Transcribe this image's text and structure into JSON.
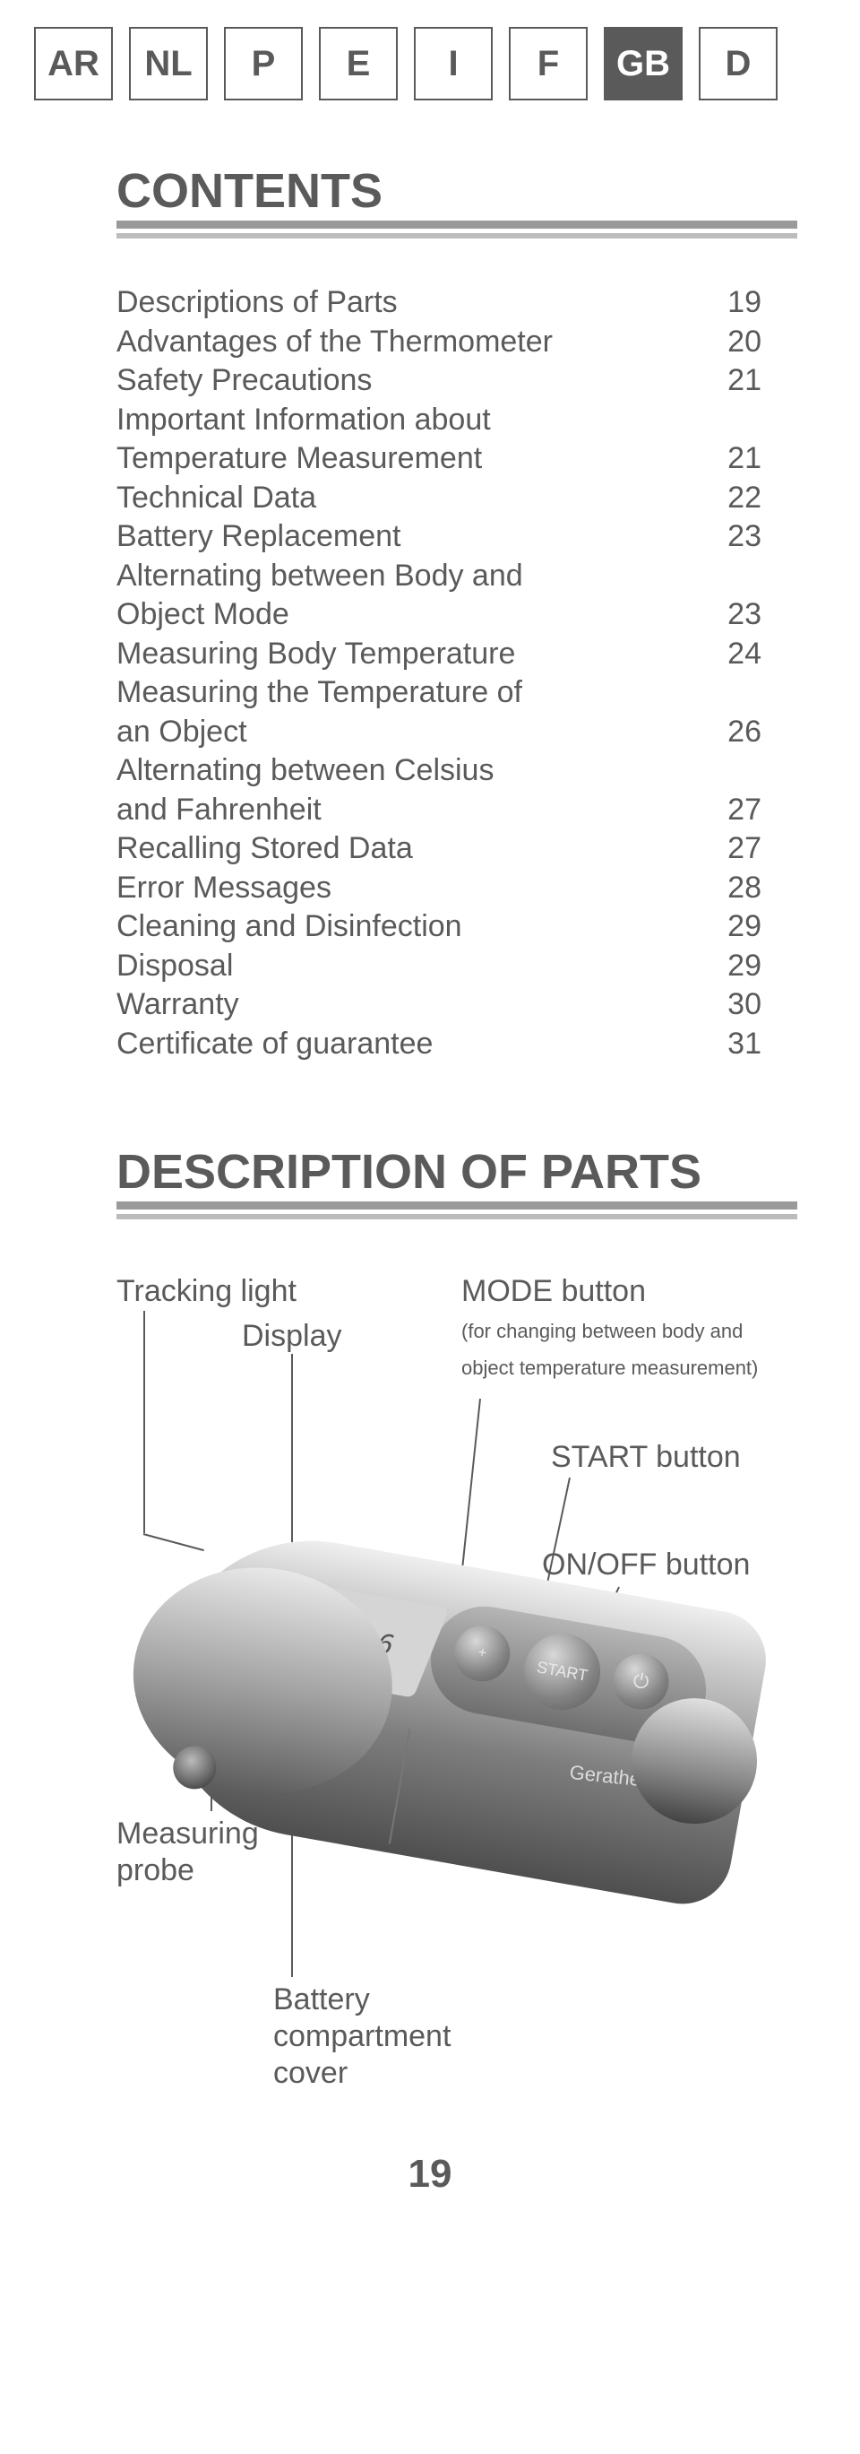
{
  "langTabs": {
    "items": [
      "AR",
      "NL",
      "P",
      "E",
      "I",
      "F",
      "GB",
      "D"
    ],
    "activeIndex": 6
  },
  "headings": {
    "contents": "CONTENTS",
    "description": "DESCRIPTION OF PARTS"
  },
  "toc": [
    {
      "label": "Descriptions of Parts",
      "page": "19"
    },
    {
      "label": "Advantages of the Thermometer",
      "page": "20"
    },
    {
      "label": "Safety Precautions",
      "page": "21"
    },
    {
      "label": "Important Information about",
      "page": ""
    },
    {
      "label": "Temperature Measurement",
      "page": "21"
    },
    {
      "label": "Technical Data",
      "page": "22"
    },
    {
      "label": "Battery Replacement",
      "page": "23"
    },
    {
      "label": "Alternating between Body and",
      "page": ""
    },
    {
      "label": "Object Mode",
      "page": "23"
    },
    {
      "label": "Measuring Body Temperature",
      "page": "24"
    },
    {
      "label": "Measuring the Temperature of",
      "page": ""
    },
    {
      "label": "an Object",
      "page": "26"
    },
    {
      "label": "Alternating between Celsius",
      "page": ""
    },
    {
      "label": "and Fahrenheit",
      "page": "27"
    },
    {
      "label": "Recalling Stored Data",
      "page": "27"
    },
    {
      "label": "Error Messages",
      "page": "28"
    },
    {
      "label": "Cleaning and Disinfection",
      "page": "29"
    },
    {
      "label": "Disposal",
      "page": "29"
    },
    {
      "label": "Warranty",
      "page": "30"
    },
    {
      "label": "Certificate of guarantee",
      "page": "31"
    }
  ],
  "diagram": {
    "tracking_light": "Tracking light",
    "display": "Display",
    "mode_button": "MODE button",
    "mode_sub": "(for changing between body and object temperature measurement)",
    "start_button": "START button",
    "onoff_button": "ON/OFF button",
    "measuring_probe": "Measuring probe",
    "battery_cover": "Battery compartment cover",
    "display_reading": "36.6",
    "btn_start_text": "START",
    "btn_onoff_text": "⏻",
    "brand": "Geratherm"
  },
  "pageNumber": "19",
  "colors": {
    "text": "#5a5a5a",
    "underline_dark": "#9a9a9a",
    "underline_light": "#bcbcbc"
  }
}
